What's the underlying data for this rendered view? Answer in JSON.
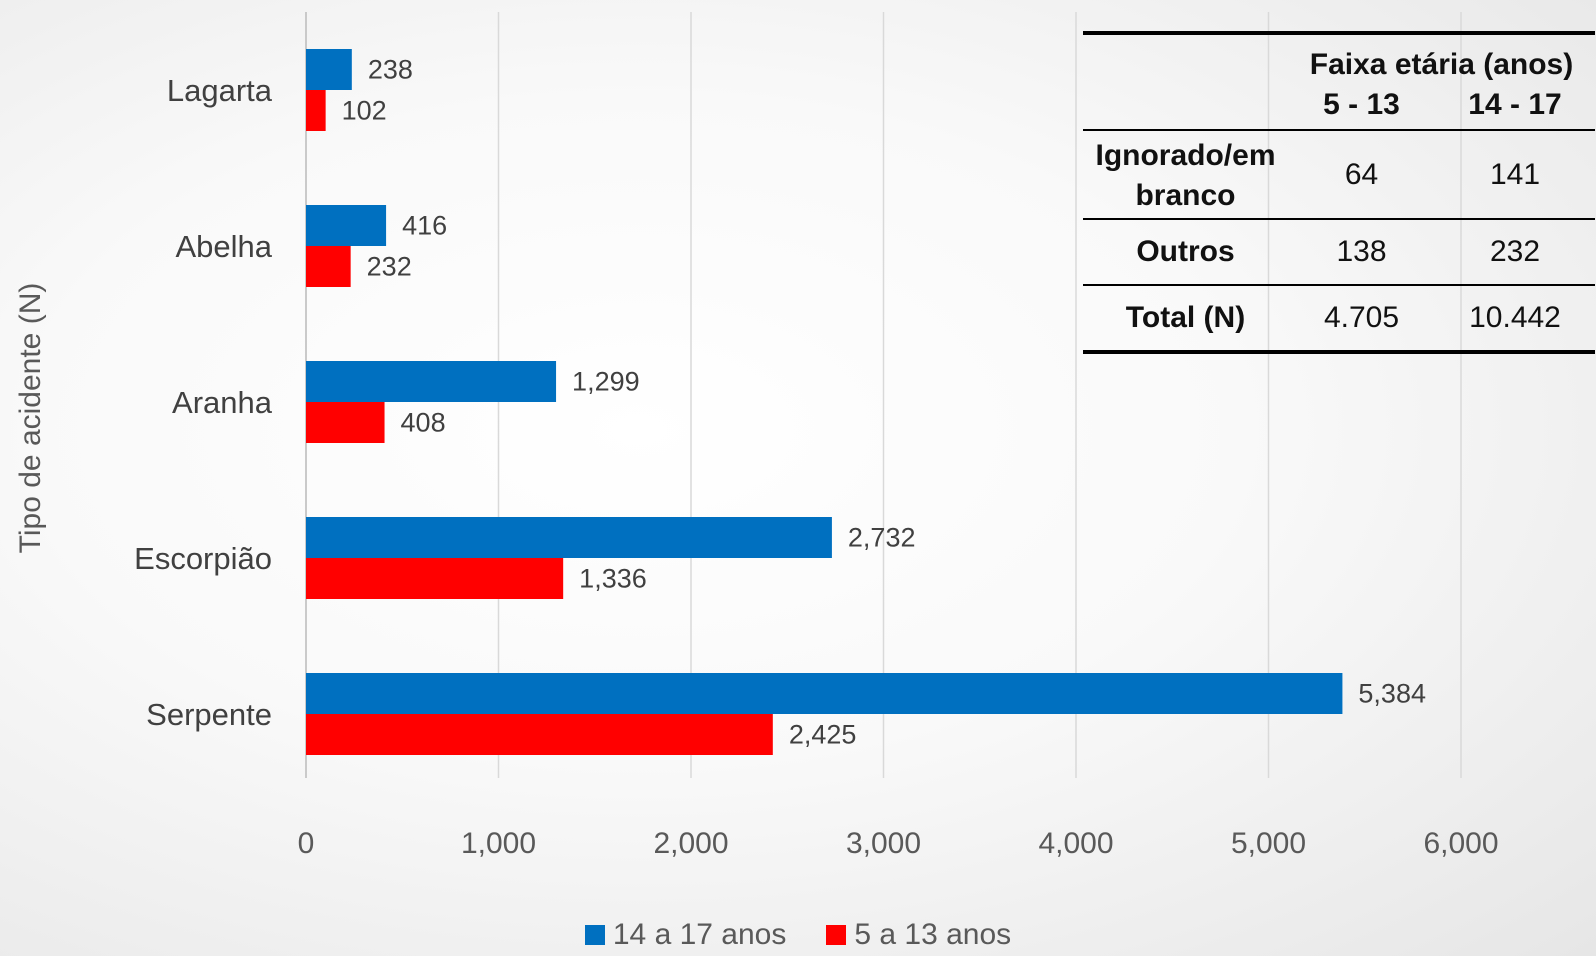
{
  "chart_data": {
    "type": "bar",
    "orientation": "horizontal",
    "categories": [
      "Lagarta",
      "Abelha",
      "Aranha",
      "Escorpião",
      "Serpente"
    ],
    "series": [
      {
        "name": "14 a 17 anos",
        "color": "#0070C0",
        "values": [
          238,
          416,
          1299,
          2732,
          5384
        ],
        "labels": [
          "238",
          "416",
          "1,299",
          "2,732",
          "5,384"
        ]
      },
      {
        "name": "5 a 13 anos",
        "color": "#FF0000",
        "values": [
          102,
          232,
          408,
          1336,
          2425
        ],
        "labels": [
          "102",
          "232",
          "408",
          "1,336",
          "2,425"
        ]
      }
    ],
    "xlim": [
      0,
      6000
    ],
    "xticks": [
      0,
      1000,
      2000,
      3000,
      4000,
      5000,
      6000
    ],
    "xtick_labels": [
      "0",
      "1,000",
      "2,000",
      "3,000",
      "4,000",
      "5,000",
      "6,000"
    ],
    "ylabel": "Tipo de acidente (N)",
    "xlabel": "",
    "grid": "vertical",
    "legend_position": "bottom"
  },
  "inset_table": {
    "group_header": "Faixa etária (anos)",
    "columns": [
      "5 - 13",
      "14 - 17"
    ],
    "rows": [
      {
        "label": "Ignorado/em branco",
        "label_line1": "Ignorado/em",
        "label_line2": "branco",
        "values": [
          "64",
          "141"
        ]
      },
      {
        "label": "Outros",
        "values": [
          "138",
          "232"
        ]
      },
      {
        "label": "Total (N)",
        "values": [
          "4.705",
          "10.442"
        ]
      }
    ]
  }
}
